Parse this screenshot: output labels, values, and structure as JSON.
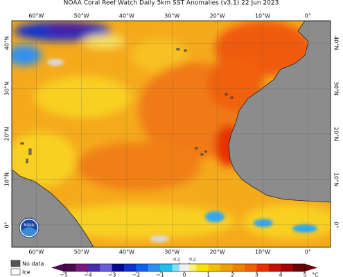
{
  "header": {
    "title": "NOAA Coral Reef Watch Daily 5km SST Anomalies (v3.1)  22 Jun 2023"
  },
  "map": {
    "lon_lim": [
      -65.4,
      5
    ],
    "lat_lim": [
      -4.9,
      44.9
    ],
    "lon_ticks": [
      {
        "value": -60,
        "label": "60°W"
      },
      {
        "value": -50,
        "label": "50°W"
      },
      {
        "value": -40,
        "label": "40°W"
      },
      {
        "value": -30,
        "label": "30°W"
      },
      {
        "value": -20,
        "label": "20°W"
      },
      {
        "value": -10,
        "label": "10°W"
      },
      {
        "value": 0,
        "label": "0°"
      }
    ],
    "lat_ticks": [
      {
        "value": 40,
        "label": "40°N"
      },
      {
        "value": 30,
        "label": "30°N"
      },
      {
        "value": 20,
        "label": "20°N"
      },
      {
        "value": 10,
        "label": "10°N"
      },
      {
        "value": 0,
        "label": "0°"
      }
    ],
    "logo_text": "NOAA"
  },
  "legend": {
    "no_data": "No data",
    "ice": "Ice"
  },
  "colorbar": {
    "lim": [
      -5,
      5
    ],
    "ticks": [
      {
        "value": -5,
        "label": "−5"
      },
      {
        "value": -4,
        "label": "−4"
      },
      {
        "value": -3,
        "label": "−3"
      },
      {
        "value": -2,
        "label": "−2"
      },
      {
        "value": -1,
        "label": "−1"
      },
      0,
      1,
      2,
      3,
      4,
      5
    ],
    "minor_ticks": [
      -0.2,
      0.2
    ],
    "unit": "°C",
    "bounds": [
      -5,
      -4.5,
      -4,
      -3.5,
      -3,
      -2.5,
      -2,
      -1.5,
      -1,
      -0.5,
      -0.2,
      0.2,
      0.5,
      1,
      1.5,
      2,
      2.5,
      3,
      3.5,
      4,
      4.5,
      5
    ],
    "colors": [
      "#4b0a4f",
      "#7a1a80",
      "#4a2ab0",
      "#6a5ce0",
      "#000a90",
      "#1030d0",
      "#1060f0",
      "#3090f0",
      "#20c0f0",
      "#80e0f8",
      "#f0f0f0",
      "#f8f080",
      "#f8e000",
      "#f0c000",
      "#f0a000",
      "#f08000",
      "#f06000",
      "#e83000",
      "#c81000",
      "#a00000",
      "#680000"
    ]
  }
}
